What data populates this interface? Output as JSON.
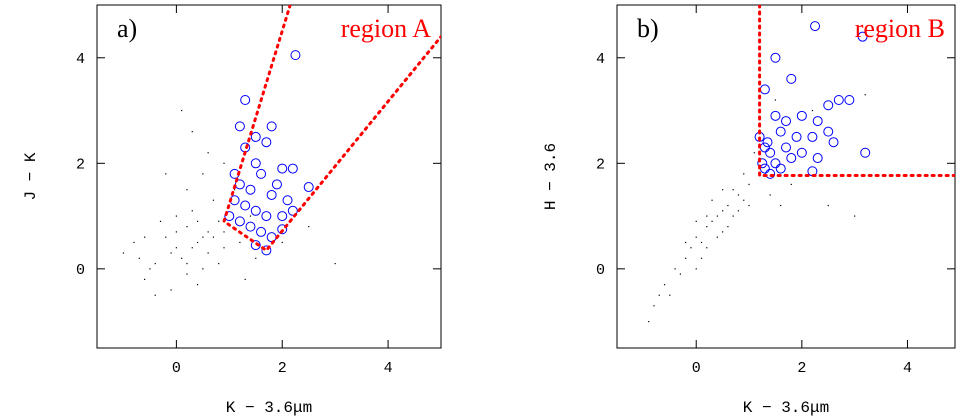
{
  "chart_data": [
    {
      "type": "scatter",
      "panel_label": "a)",
      "region_label": "region A",
      "region_color": "#ff0000",
      "xlabel": "K − 3.6μm",
      "ylabel": "J − K",
      "xlim": [
        -1.5,
        5
      ],
      "ylim": [
        -1.5,
        5
      ],
      "xticks": [
        0,
        2,
        4
      ],
      "yticks": [
        0,
        2,
        4
      ],
      "region_boundary": {
        "x": [
          2.15,
          0.9,
          1.7,
          5
        ],
        "y": [
          5,
          0.9,
          0.35,
          4.4
        ]
      },
      "series": [
        {
          "color": "#000000",
          "marker": "dot",
          "x": [
            0.4,
            0.2,
            0.6,
            0.0,
            0.8,
            -0.2,
            0.3,
            0.5,
            0.1,
            0.7,
            -0.5,
            -0.6,
            -0.4,
            -0.7,
            1.0,
            0.9,
            0.2,
            0.5,
            0.0,
            -0.3,
            1.2,
            1.5,
            2.0,
            2.5,
            0.4,
            -0.1,
            -0.8,
            -1.0,
            0.6,
            0.3,
            0.9,
            1.1,
            -0.2,
            0.7,
            0.4,
            0.2,
            0.8,
            -0.4,
            1.3,
            3.0,
            0.1,
            0.6,
            0.3,
            0.0,
            -0.1,
            0.5,
            0.9,
            1.4,
            -0.6,
            0.2
          ],
          "y": [
            0.5,
            0.8,
            0.3,
            0.4,
            0.9,
            0.6,
            1.1,
            0.0,
            0.2,
            0.6,
            0.0,
            -0.2,
            0.1,
            0.2,
            1.2,
            0.4,
            1.5,
            1.8,
            1.0,
            0.9,
            0.5,
            0.2,
            0.5,
            0.8,
            -0.3,
            -0.4,
            0.5,
            0.3,
            2.2,
            2.6,
            2.0,
            1.5,
            1.8,
            1.3,
            0.9,
            0.1,
            0.1,
            -0.5,
            -0.2,
            0.1,
            3.0,
            0.7,
            0.4,
            0.7,
            0.3,
            0.6,
            0.7,
            1.0,
            0.6,
            -0.1
          ]
        },
        {
          "color": "#0000ff",
          "marker": "circle",
          "x": [
            2.25,
            1.3,
            1.2,
            1.8,
            1.5,
            1.7,
            1.3,
            1.5,
            1.6,
            2.0,
            2.2,
            1.2,
            1.4,
            1.8,
            2.1,
            2.5,
            1.1,
            1.3,
            1.5,
            1.7,
            2.0,
            2.2,
            1.0,
            1.2,
            1.4,
            1.6,
            1.8,
            2.0,
            1.5,
            1.7,
            1.1,
            1.9
          ],
          "y": [
            4.05,
            3.2,
            2.7,
            2.7,
            2.5,
            2.4,
            2.3,
            2.0,
            1.8,
            1.9,
            1.9,
            1.6,
            1.5,
            1.4,
            1.3,
            1.55,
            1.3,
            1.2,
            1.1,
            1.0,
            1.0,
            1.1,
            1.0,
            0.9,
            0.8,
            0.7,
            0.6,
            0.75,
            0.45,
            0.35,
            1.8,
            1.6
          ]
        }
      ]
    },
    {
      "type": "scatter",
      "panel_label": "b)",
      "region_label": "region B",
      "region_color": "#ff0000",
      "xlabel": "K − 3.6μm",
      "ylabel": "H − 3.6",
      "xlim": [
        -1.5,
        4.9
      ],
      "ylim": [
        -1.5,
        5
      ],
      "xticks": [
        0,
        2,
        4
      ],
      "yticks": [
        0,
        2,
        4
      ],
      "region_boundary": {
        "x": [
          1.2,
          1.2,
          4.9
        ],
        "y": [
          5,
          1.77,
          1.77
        ]
      },
      "series": [
        {
          "color": "#000000",
          "marker": "dot",
          "x": [
            0,
            0.2,
            0.4,
            0.6,
            0.8,
            1.0,
            0.1,
            0.3,
            0.5,
            0.7,
            0.9,
            -0.2,
            -0.4,
            -0.6,
            -0.8,
            -0.9,
            -0.5,
            -0.3,
            1.2,
            1.1,
            0.5,
            0.2,
            0.0,
            -0.1,
            0.4,
            0.6,
            0.8,
            1.4,
            1.8,
            2.5,
            3.0,
            1.5,
            0.3,
            -0.7,
            0.1,
            0.7,
            0.9,
            1.0,
            0.2,
            -0.2,
            2.2,
            3.2,
            1.6,
            0.5,
            0.0
          ],
          "y": [
            0.6,
            0.8,
            1.0,
            1.2,
            1.4,
            1.6,
            0.5,
            0.9,
            1.1,
            1.0,
            1.3,
            0.2,
            0.0,
            -0.3,
            -0.7,
            -1.0,
            -0.5,
            -0.1,
            1.8,
            2.2,
            1.5,
            0.4,
            0.9,
            0.4,
            0.6,
            0.8,
            1.1,
            1.4,
            1.6,
            1.2,
            1.0,
            3.2,
            1.3,
            -0.5,
            0.2,
            1.5,
            1.8,
            1.2,
            1.0,
            0.5,
            3.0,
            3.3,
            1.2,
            0.7,
            0.0
          ]
        },
        {
          "color": "#0000ff",
          "marker": "circle",
          "x": [
            2.25,
            3.15,
            1.3,
            1.5,
            1.8,
            2.7,
            2.5,
            2.9,
            1.5,
            1.7,
            2.0,
            2.3,
            1.6,
            1.9,
            2.2,
            2.5,
            1.3,
            1.4,
            1.25,
            1.5,
            1.8,
            2.0,
            2.3,
            1.3,
            1.4,
            1.6,
            2.2,
            3.2,
            1.2,
            1.35,
            2.6,
            1.7
          ],
          "y": [
            4.6,
            4.4,
            3.4,
            4.0,
            3.6,
            3.2,
            3.1,
            3.2,
            2.9,
            2.8,
            2.9,
            2.8,
            2.6,
            2.5,
            2.5,
            2.6,
            2.3,
            2.2,
            2.0,
            2.0,
            2.1,
            2.2,
            2.1,
            1.9,
            1.8,
            1.9,
            1.85,
            2.2,
            2.5,
            2.4,
            2.4,
            2.3
          ]
        }
      ]
    }
  ]
}
